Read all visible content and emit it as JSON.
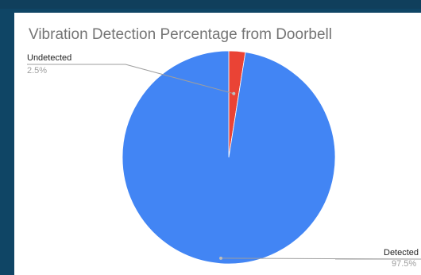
{
  "colors": {
    "background": "#0f4565",
    "card": "#ffffff",
    "title": "#757575",
    "detected": "#4285f4",
    "undetected": "#ea4335",
    "leader_line": "#9e9e9e"
  },
  "chart_data": {
    "type": "pie",
    "title": "Vibration Detection Percentage from Doorbell",
    "slices": [
      {
        "label": "Undetected",
        "value": 2.5,
        "pct_label": "2.5%",
        "color": "#ea4335"
      },
      {
        "label": "Detected",
        "value": 97.5,
        "pct_label": "97.5%",
        "color": "#4285f4"
      }
    ]
  }
}
